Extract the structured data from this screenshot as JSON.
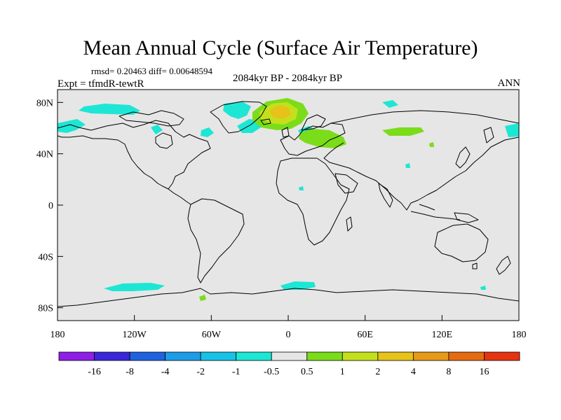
{
  "title": "Mean Annual Cycle (Surface Air Temperature)",
  "stats": "rmsd= 0.20463 diff= 0.00648594",
  "experiment": "Expt = tfmdR-tewtR",
  "period": "2084kyr BP - 2084kyr BP",
  "season": "ANN",
  "map": {
    "lon_range": [
      -180,
      180
    ],
    "lat_range": [
      -90,
      90
    ],
    "lat_ticks": [
      {
        "value": 80,
        "label": "80N"
      },
      {
        "value": 40,
        "label": "40N"
      },
      {
        "value": 0,
        "label": "0"
      },
      {
        "value": -40,
        "label": "40S"
      },
      {
        "value": -80,
        "label": "80S"
      }
    ],
    "lon_ticks": [
      {
        "value": -180,
        "label": "180"
      },
      {
        "value": -120,
        "label": "120W"
      },
      {
        "value": -60,
        "label": "60W"
      },
      {
        "value": 0,
        "label": "0"
      },
      {
        "value": 60,
        "label": "60E"
      },
      {
        "value": 120,
        "label": "120E"
      },
      {
        "value": 180,
        "label": "180"
      }
    ],
    "background_color": "#e6e6e6"
  },
  "colorbar": {
    "colors": [
      "#8e1fe6",
      "#3a27d9",
      "#1f62e0",
      "#1d9ce8",
      "#16c3e6",
      "#1ee6d4",
      "#e6e6e6",
      "#7bdc1a",
      "#c4e01c",
      "#e6c21a",
      "#e69a17",
      "#e66c12",
      "#e63412"
    ],
    "labels": [
      "-16",
      "-8",
      "-4",
      "-2",
      "-1",
      "-0.5",
      "0.5",
      "1",
      "2",
      "4",
      "8",
      "16"
    ]
  }
}
